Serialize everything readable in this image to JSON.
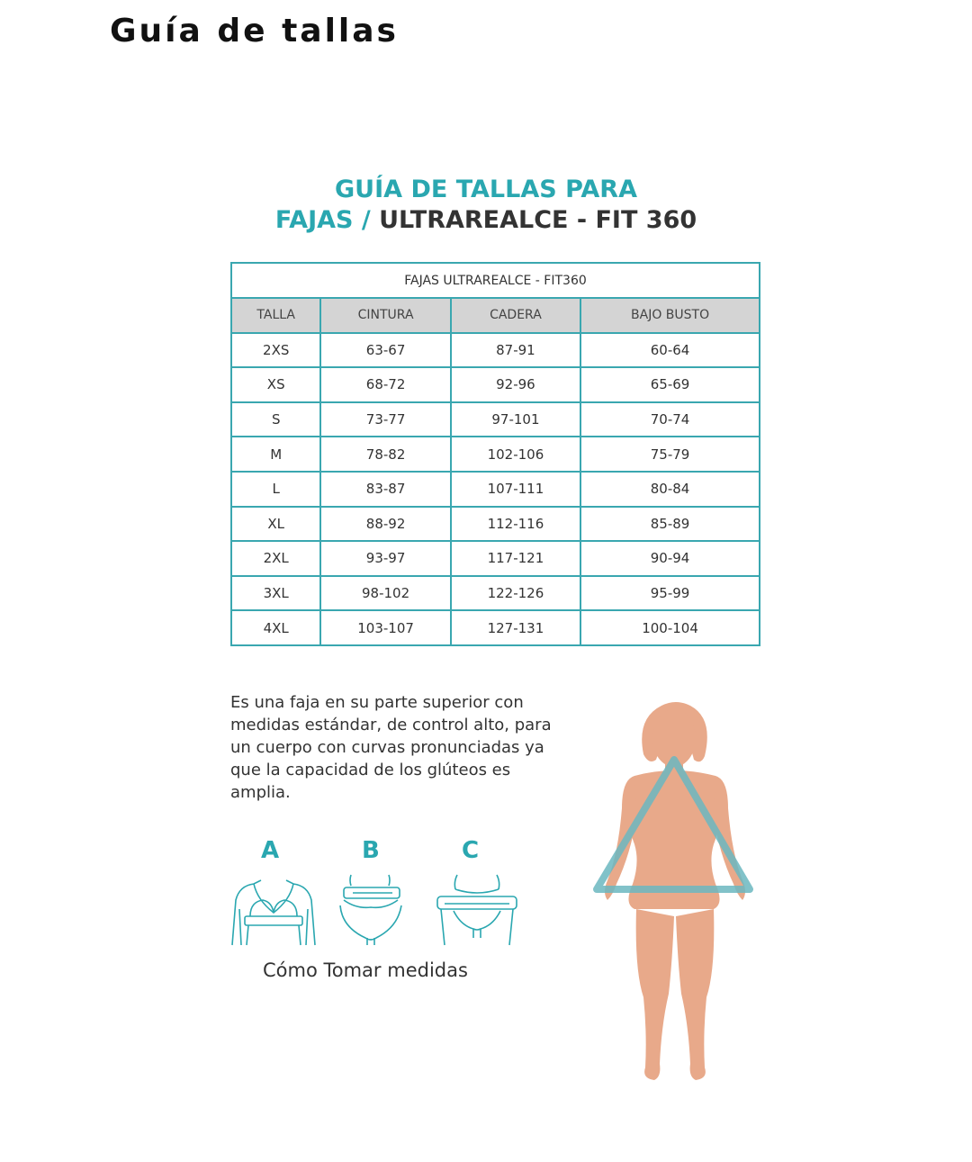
{
  "page": {
    "heading": "Guía de tallas"
  },
  "guide": {
    "title_line1": "GUÍA DE TALLAS PARA",
    "title_line2_accent": "FAJAS /",
    "title_line2_main": " ULTRAREALCE - FIT 360"
  },
  "table": {
    "caption": "FAJAS ULTRAREALCE - FIT360",
    "headers": [
      "TALLA",
      "CINTURA",
      "CADERA",
      "BAJO BUSTO"
    ],
    "rows": [
      [
        "2XS",
        "63-67",
        "87-91",
        "60-64"
      ],
      [
        "XS",
        "68-72",
        "92-96",
        "65-69"
      ],
      [
        "S",
        "73-77",
        "97-101",
        "70-74"
      ],
      [
        "M",
        "78-82",
        "102-106",
        "75-79"
      ],
      [
        "L",
        "83-87",
        "107-111",
        "80-84"
      ],
      [
        "XL",
        "88-92",
        "112-116",
        "85-89"
      ],
      [
        "2XL",
        "93-97",
        "117-121",
        "90-94"
      ],
      [
        "3XL",
        "98-102",
        "122-126",
        "95-99"
      ],
      [
        "4XL",
        "103-107",
        "127-131",
        "100-104"
      ]
    ]
  },
  "description": "Es una faja en su parte superior con medidas estándar, de control alto, para un cuerpo con curvas pronunciadas ya que la capacidad de los glúteos es amplia.",
  "measurements": {
    "letters": [
      "A",
      "B",
      "C"
    ],
    "caption": "Cómo Tomar medidas"
  },
  "colors": {
    "accent": "#2aa7b0",
    "dark_text": "#333333",
    "header_bg": "#d4d4d4",
    "skin": "#e8a98a"
  }
}
